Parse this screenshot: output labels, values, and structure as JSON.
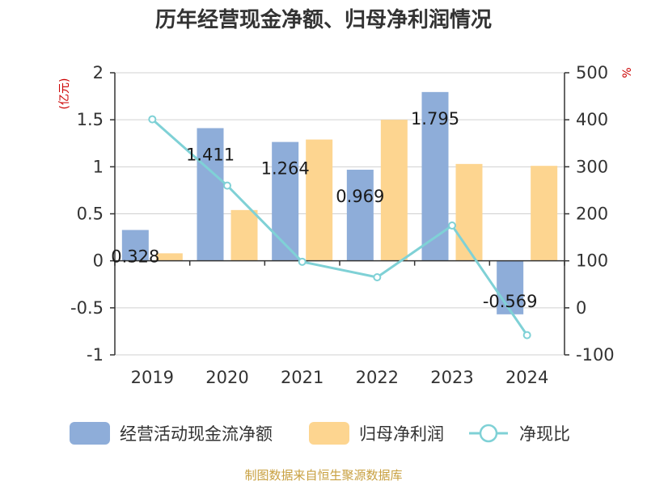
{
  "title": "历年经营现金净额、归母净利润情况",
  "source": "制图数据来自恒生聚源数据库",
  "chart_data": {
    "type": "bar",
    "title": "历年经营现金净额、归母净利润情况",
    "categories": [
      "2019",
      "2020",
      "2021",
      "2022",
      "2023",
      "2024"
    ],
    "left_axis": {
      "unit": "(亿元)",
      "ylim": [
        -1,
        2
      ],
      "ticks": [
        "-1",
        "-0.5",
        "0",
        "0.5",
        "1",
        "1.5",
        "2"
      ]
    },
    "right_axis": {
      "unit": "%",
      "ylim": [
        -100,
        500
      ],
      "ticks": [
        "-100",
        "0",
        "100",
        "200",
        "300",
        "400",
        "500"
      ]
    },
    "series": [
      {
        "name": "经营活动现金流净额",
        "type": "bar",
        "axis": "left",
        "color": "#8eadd9",
        "values": [
          0.328,
          1.411,
          1.264,
          0.969,
          1.795,
          -0.569
        ],
        "labels": [
          "0.328",
          "1.411",
          "1.264",
          "0.969",
          "1.795",
          "-0.569"
        ]
      },
      {
        "name": "归母净利润",
        "type": "bar",
        "axis": "left",
        "color": "#fdd590",
        "values": [
          0.08,
          0.54,
          1.29,
          1.5,
          1.03,
          1.01
        ]
      },
      {
        "name": "净现比",
        "type": "line",
        "axis": "right",
        "color": "#7fd1d6",
        "values": [
          401,
          260,
          98,
          65,
          175,
          -58
        ]
      }
    ],
    "grid": true,
    "legend_position": "bottom"
  }
}
